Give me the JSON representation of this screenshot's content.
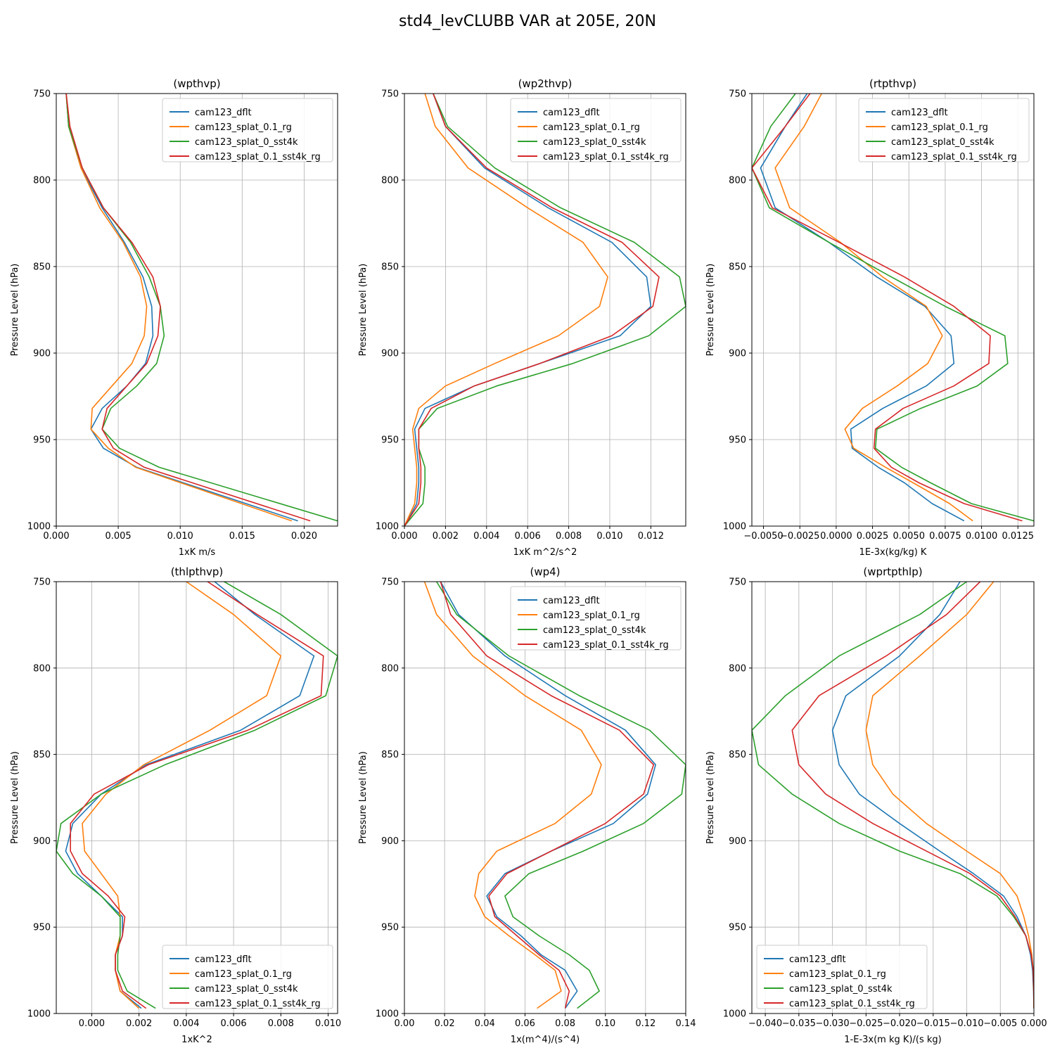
{
  "figure": {
    "title": "std4_levCLUBB VAR at 205E, 20N"
  },
  "legend_labels": [
    "cam123_dflt",
    "cam123_splat_0.1_rg",
    "cam123_splat_0_sst4k",
    "cam123_splat_0.1_sst4k_rg"
  ],
  "colors": {
    "cam123_dflt": "#1f77b4",
    "cam123_splat_0.1_rg": "#ff7f0e",
    "cam123_splat_0_sst4k": "#2ca02c",
    "cam123_splat_0.1_sst4k_rg": "#d62728"
  },
  "chart_data": [
    {
      "type": "line",
      "title": "(wpthvp)",
      "xlabel": "1xK m/s",
      "ylabel": "Pressure Level (hPa)",
      "xlim": [
        0,
        0.0227
      ],
      "ylim": [
        1000,
        750
      ],
      "xticks": [
        0,
        0.005,
        0.01,
        0.015,
        0.02
      ],
      "xtick_labels": [
        "0.000",
        "0.005",
        "0.010",
        "0.015",
        "0.020"
      ],
      "yticks": [
        750,
        800,
        850,
        900,
        950,
        1000
      ],
      "grid": true,
      "legend_loc": "upper-right",
      "y": [
        750,
        769,
        793,
        816,
        836,
        856,
        873,
        890,
        906,
        919,
        932,
        944,
        955,
        966,
        997
      ],
      "series": [
        {
          "name": "cam123_dflt",
          "values": [
            0.0008,
            0.001,
            0.002,
            0.0037,
            0.0055,
            0.007,
            0.0077,
            0.0078,
            0.0072,
            0.0057,
            0.0037,
            0.0028,
            0.0038,
            0.0065,
            0.0195
          ]
        },
        {
          "name": "cam123_splat_0.1_rg",
          "values": [
            0.0008,
            0.001,
            0.002,
            0.0035,
            0.0054,
            0.0068,
            0.0073,
            0.0071,
            0.0061,
            0.0045,
            0.0029,
            0.0028,
            0.0042,
            0.0064,
            0.019
          ]
        },
        {
          "name": "cam123_splat_0_sst4k",
          "values": [
            0.0008,
            0.001,
            0.0021,
            0.0038,
            0.006,
            0.0075,
            0.0084,
            0.0087,
            0.0081,
            0.0065,
            0.0044,
            0.0037,
            0.0051,
            0.0083,
            0.0227
          ]
        },
        {
          "name": "cam123_splat_0.1_sst4k_rg",
          "values": [
            0.0008,
            0.0011,
            0.0021,
            0.0038,
            0.0061,
            0.0078,
            0.0084,
            0.0082,
            0.0073,
            0.0057,
            0.0041,
            0.0037,
            0.0046,
            0.0071,
            0.0205
          ]
        }
      ]
    },
    {
      "type": "line",
      "title": "(wp2thvp)",
      "xlabel": "1xK m^2/s^2",
      "ylabel": "Pressure Level (hPa)",
      "xlim": [
        0,
        0.0137
      ],
      "ylim": [
        1000,
        750
      ],
      "xticks": [
        0,
        0.002,
        0.004,
        0.006,
        0.008,
        0.01,
        0.012
      ],
      "xtick_labels": [
        "0.000",
        "0.002",
        "0.004",
        "0.006",
        "0.008",
        "0.010",
        "0.012"
      ],
      "yticks": [
        750,
        800,
        850,
        900,
        950,
        1000
      ],
      "grid": true,
      "legend_loc": "upper-right",
      "y": [
        750,
        769,
        793,
        816,
        836,
        856,
        873,
        890,
        906,
        919,
        932,
        944,
        955,
        966,
        975,
        987,
        1000
      ],
      "series": [
        {
          "name": "cam123_dflt",
          "values": [
            0.0014,
            0.002,
            0.0039,
            0.007,
            0.0101,
            0.0118,
            0.012,
            0.0105,
            0.0066,
            0.0034,
            0.001,
            0.0005,
            0.0006,
            0.0007,
            0.0007,
            0.0006,
            0.0
          ]
        },
        {
          "name": "cam123_splat_0.1_rg",
          "values": [
            0.001,
            0.0015,
            0.0031,
            0.006,
            0.0087,
            0.0099,
            0.0095,
            0.0075,
            0.0044,
            0.002,
            0.0007,
            0.0004,
            0.0005,
            0.0006,
            0.0006,
            0.0005,
            0.0
          ]
        },
        {
          "name": "cam123_splat_0_sst4k",
          "values": [
            0.0014,
            0.0021,
            0.0044,
            0.0076,
            0.0112,
            0.0134,
            0.0137,
            0.0119,
            0.0082,
            0.0045,
            0.0016,
            0.0007,
            0.0007,
            0.001,
            0.001,
            0.0009,
            0.0
          ]
        },
        {
          "name": "cam123_splat_0.1_sst4k_rg",
          "values": [
            0.0014,
            0.002,
            0.004,
            0.0072,
            0.0106,
            0.0124,
            0.0121,
            0.0101,
            0.0066,
            0.0034,
            0.0013,
            0.0007,
            0.0007,
            0.0008,
            0.0008,
            0.0007,
            0.0
          ]
        }
      ]
    },
    {
      "type": "line",
      "title": "(rtpthvp)",
      "xlabel": "1E-3x(kg/kg) K",
      "ylabel": "Pressure Level (hPa)",
      "xlim": [
        -0.0058,
        0.0136
      ],
      "ylim": [
        1000,
        750
      ],
      "xticks": [
        -0.005,
        -0.0025,
        0,
        0.0025,
        0.005,
        0.0075,
        0.01,
        0.0125
      ],
      "xtick_labels": [
        "−0.0050",
        "−0.0025",
        "0.0000",
        "0.0025",
        "0.0050",
        "0.0075",
        "0.0100",
        "0.0125"
      ],
      "yticks": [
        750,
        800,
        850,
        900,
        950,
        1000
      ],
      "grid": true,
      "legend_loc": "upper-right",
      "y": [
        750,
        769,
        793,
        816,
        836,
        856,
        873,
        890,
        906,
        919,
        932,
        944,
        955,
        966,
        975,
        987,
        997
      ],
      "series": [
        {
          "name": "cam123_dflt",
          "values": [
            -0.002,
            -0.0035,
            -0.0052,
            -0.0042,
            -0.0005,
            0.0028,
            0.0061,
            0.0079,
            0.0081,
            0.0062,
            0.0032,
            0.001,
            0.0011,
            0.0029,
            0.0047,
            0.0066,
            0.0088
          ]
        },
        {
          "name": "cam123_splat_0.1_rg",
          "values": [
            -0.001,
            -0.0022,
            -0.0042,
            -0.0032,
            0.0003,
            0.0032,
            0.0062,
            0.0073,
            0.0063,
            0.0042,
            0.0018,
            0.0006,
            0.0012,
            0.0034,
            0.0053,
            0.0078,
            0.0094
          ]
        },
        {
          "name": "cam123_splat_0_sst4k",
          "values": [
            -0.0028,
            -0.0045,
            -0.0058,
            -0.0046,
            -0.0005,
            0.0038,
            0.0075,
            0.0116,
            0.0118,
            0.0097,
            0.0058,
            0.0028,
            0.0027,
            0.0045,
            0.0065,
            0.0093,
            0.0136
          ]
        },
        {
          "name": "cam123_splat_0.1_sst4k_rg",
          "values": [
            -0.0018,
            -0.0035,
            -0.0058,
            -0.0044,
            0.0002,
            0.0047,
            0.0081,
            0.0106,
            0.0105,
            0.0081,
            0.0046,
            0.0027,
            0.0026,
            0.0038,
            0.0057,
            0.0088,
            0.0128
          ]
        }
      ]
    },
    {
      "type": "line",
      "title": "(thlpthvp)",
      "xlabel": "1xK^2",
      "ylabel": "Pressure Level (hPa)",
      "xlim": [
        -0.0015,
        0.0104
      ],
      "ylim": [
        1000,
        750
      ],
      "xticks": [
        0,
        0.002,
        0.004,
        0.006,
        0.008,
        0.01
      ],
      "xtick_labels": [
        "0.000",
        "0.002",
        "0.004",
        "0.006",
        "0.008",
        "0.010"
      ],
      "yticks": [
        750,
        800,
        850,
        900,
        950,
        1000
      ],
      "grid": true,
      "legend_loc": "lower-right",
      "y": [
        750,
        769,
        793,
        816,
        836,
        856,
        873,
        890,
        906,
        919,
        932,
        944,
        955,
        966,
        975,
        987,
        997
      ],
      "series": [
        {
          "name": "cam123_dflt",
          "values": [
            0.0052,
            0.0069,
            0.0094,
            0.0088,
            0.0063,
            0.0023,
            0.0004,
            -0.0008,
            -0.0011,
            -0.0006,
            0.0004,
            0.0013,
            0.0013,
            0.001,
            0.001,
            0.0012,
            0.0021
          ]
        },
        {
          "name": "cam123_splat_0.1_rg",
          "values": [
            0.004,
            0.006,
            0.008,
            0.0074,
            0.005,
            0.0022,
            0.0006,
            -0.0004,
            -0.0003,
            0.0004,
            0.0011,
            0.0012,
            0.0012,
            0.001,
            0.001,
            0.0012,
            0.002
          ]
        },
        {
          "name": "cam123_splat_0_sst4k",
          "values": [
            0.0056,
            0.008,
            0.0104,
            0.0099,
            0.0069,
            0.0031,
            0.0004,
            -0.0013,
            -0.0015,
            -0.0008,
            0.0004,
            0.0012,
            0.0012,
            0.0011,
            0.0011,
            0.0015,
            0.0027
          ]
        },
        {
          "name": "cam123_splat_0.1_sst4k_rg",
          "values": [
            0.0049,
            0.007,
            0.0098,
            0.0097,
            0.0066,
            0.0024,
            0.0001,
            -0.0009,
            -0.0009,
            -0.0004,
            0.0007,
            0.0014,
            0.0013,
            0.001,
            0.001,
            0.0013,
            0.0023
          ]
        }
      ]
    },
    {
      "type": "line",
      "title": "(wp4)",
      "xlabel": "1x(m^4)/(s^4)",
      "ylabel": "Pressure Level (hPa)",
      "xlim": [
        0,
        0.14
      ],
      "ylim": [
        1000,
        750
      ],
      "xticks": [
        0,
        0.02,
        0.04,
        0.06,
        0.08,
        0.1,
        0.12,
        0.14
      ],
      "xtick_labels": [
        "0.00",
        "0.02",
        "0.04",
        "0.06",
        "0.08",
        "0.10",
        "0.12",
        "0.14"
      ],
      "yticks": [
        750,
        800,
        850,
        900,
        950,
        1000
      ],
      "grid": true,
      "legend_loc": "upper-right",
      "y": [
        750,
        769,
        793,
        816,
        836,
        856,
        873,
        890,
        906,
        919,
        932,
        944,
        955,
        966,
        975,
        987,
        997
      ],
      "series": [
        {
          "name": "cam123_dflt",
          "values": [
            0.018,
            0.027,
            0.05,
            0.08,
            0.11,
            0.125,
            0.121,
            0.104,
            0.073,
            0.05,
            0.041,
            0.046,
            0.058,
            0.068,
            0.08,
            0.086,
            0.08
          ]
        },
        {
          "name": "cam123_splat_0.1_rg",
          "values": [
            0.01,
            0.016,
            0.034,
            0.06,
            0.088,
            0.098,
            0.093,
            0.075,
            0.046,
            0.037,
            0.035,
            0.04,
            0.052,
            0.065,
            0.075,
            0.078,
            0.066
          ]
        },
        {
          "name": "cam123_splat_0_sst4k",
          "values": [
            0.016,
            0.026,
            0.052,
            0.087,
            0.122,
            0.14,
            0.138,
            0.119,
            0.089,
            0.062,
            0.05,
            0.054,
            0.067,
            0.082,
            0.092,
            0.097,
            0.086
          ]
        },
        {
          "name": "cam123_splat_0.1_sst4k_rg",
          "values": [
            0.018,
            0.023,
            0.041,
            0.073,
            0.107,
            0.124,
            0.119,
            0.1,
            0.073,
            0.051,
            0.042,
            0.045,
            0.056,
            0.067,
            0.077,
            0.082,
            0.08
          ]
        }
      ]
    },
    {
      "type": "line",
      "title": "(wprtpthlp)",
      "xlabel": "1-E-3x(m kg K)/(s kg)",
      "ylabel": "Pressure Level (hPa)",
      "xlim": [
        -0.042,
        0.0
      ],
      "ylim": [
        1000,
        750
      ],
      "xticks": [
        -0.04,
        -0.035,
        -0.03,
        -0.025,
        -0.02,
        -0.015,
        -0.01,
        -0.005,
        0.0
      ],
      "xtick_labels": [
        "−0.040",
        "−0.035",
        "−0.030",
        "−0.025",
        "−0.020",
        "−0.015",
        "−0.010",
        "−0.005",
        "0.000"
      ],
      "yticks": [
        750,
        800,
        850,
        900,
        950,
        1000
      ],
      "grid": true,
      "legend_loc": "lower-left",
      "y": [
        750,
        769,
        793,
        816,
        836,
        856,
        873,
        890,
        906,
        919,
        932,
        944,
        955,
        966,
        975,
        987,
        997
      ],
      "series": [
        {
          "name": "cam123_dflt",
          "values": [
            -0.011,
            -0.014,
            -0.02,
            -0.028,
            -0.03,
            -0.029,
            -0.026,
            -0.02,
            -0.014,
            -0.009,
            -0.0045,
            -0.0025,
            -0.0012,
            -0.0005,
            -0.0002,
            -5e-05,
            0.0
          ]
        },
        {
          "name": "cam123_splat_0.1_rg",
          "values": [
            -0.006,
            -0.01,
            -0.017,
            -0.024,
            -0.025,
            -0.024,
            -0.021,
            -0.016,
            -0.01,
            -0.005,
            -0.0025,
            -0.0015,
            -0.0008,
            -0.0003,
            -0.0001,
            -3e-05,
            0.0
          ]
        },
        {
          "name": "cam123_splat_0_sst4k",
          "values": [
            -0.01,
            -0.017,
            -0.029,
            -0.037,
            -0.042,
            -0.041,
            -0.036,
            -0.029,
            -0.02,
            -0.011,
            -0.0055,
            -0.003,
            -0.0012,
            -0.0004,
            -0.0001,
            -2e-05,
            0.0
          ]
        },
        {
          "name": "cam123_splat_0.1_sst4k_rg",
          "values": [
            -0.008,
            -0.013,
            -0.022,
            -0.032,
            -0.036,
            -0.035,
            -0.031,
            -0.024,
            -0.016,
            -0.0095,
            -0.005,
            -0.0028,
            -0.0012,
            -0.0004,
            -0.0001,
            -2e-05,
            0.0
          ]
        }
      ]
    }
  ]
}
